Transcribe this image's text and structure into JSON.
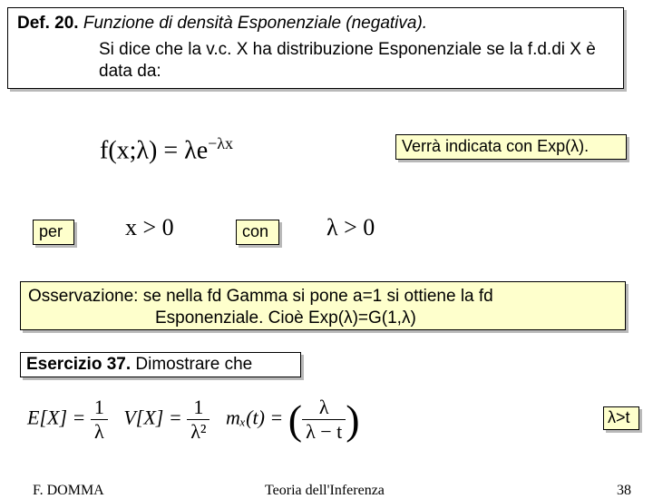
{
  "def": {
    "title_prefix": "Def. 20.",
    "title_italic": "Funzione di densità Esponenziale (negativa).",
    "body": "Si dice che la v.c. X ha distribuzione Esponenziale se la f.d.di  X è data da:"
  },
  "formula_main": "f(x;λ) = λe",
  "formula_main_exp": "−λx",
  "verra": "Verrà indicata con Exp(λ).",
  "per": "per",
  "x_cond": "x > 0",
  "con": "con",
  "l_cond": "λ > 0",
  "osserv_line1": "Osservazione: se nella fd Gamma si pone a=1 si ottiene la fd",
  "osserv_line2": "Esponenziale. Cioè Exp(λ)=G(1,λ)",
  "esercizio_bold": "Esercizio 37.",
  "esercizio_rest": " Dimostrare che",
  "eq_EX_lhs": "E[X] =",
  "eq_EX_num": "1",
  "eq_EX_den": "λ",
  "eq_VX_lhs": "V[X] =",
  "eq_VX_num": "1",
  "eq_VX_den": "λ²",
  "eq_mX_lhs": "mₓ(t) =",
  "eq_mX_num": "λ",
  "eq_mX_den": "λ − t",
  "lambda_gt_t": "λ>t",
  "footer": {
    "author": "F. DOMMA",
    "title": "Teoria dell'Inferenza",
    "page": "38"
  },
  "colors": {
    "yellow_bg": "#feffcc",
    "border": "#000000",
    "shadow": "rgba(80,80,80,0.4)"
  }
}
